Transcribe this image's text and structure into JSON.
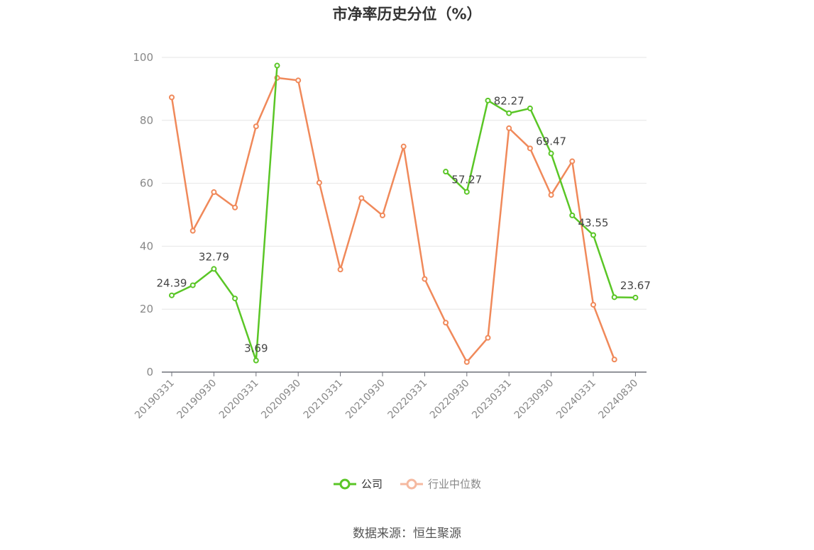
{
  "chart_data": {
    "type": "line",
    "title": "市净率历史分位（%）",
    "source": "数据来源：恒生聚源",
    "xlabel": "",
    "ylabel": "",
    "ylim": [
      0,
      100
    ],
    "yticks": [
      0,
      20,
      40,
      60,
      80,
      100
    ],
    "x_tick_labels": [
      "20190331",
      "20190930",
      "20200331",
      "20200930",
      "20210331",
      "20210930",
      "20220331",
      "20220930",
      "20230331",
      "20230930",
      "20240331",
      "20240830"
    ],
    "categories": [
      "20190331",
      "20190630",
      "20190930",
      "20191231",
      "20200331",
      "20200630",
      "20200930",
      "20201231",
      "20210331",
      "20210630",
      "20210930",
      "20211231",
      "20220331",
      "20220630",
      "20220930",
      "20221231",
      "20230331",
      "20230630",
      "20230930",
      "20231231",
      "20240331",
      "20240630",
      "20240830"
    ],
    "series": [
      {
        "name": "公司",
        "color": "#5ac626",
        "values": [
          24.39,
          27.6,
          32.79,
          23.4,
          3.69,
          97.4,
          null,
          null,
          null,
          null,
          null,
          null,
          null,
          63.7,
          57.27,
          86.3,
          82.27,
          83.8,
          69.47,
          49.8,
          43.55,
          23.8,
          23.67
        ],
        "labels": {
          "0": "24.39",
          "2": "32.79",
          "4": "3.69",
          "14": "57.27",
          "16": "82.27",
          "18": "69.47",
          "20": "43.55",
          "22": "23.67"
        }
      },
      {
        "name": "行业中位数",
        "color": "#f0895a",
        "values": [
          87.3,
          44.9,
          57.2,
          52.3,
          78.1,
          93.5,
          92.7,
          60.2,
          32.6,
          55.3,
          49.8,
          71.7,
          29.6,
          15.7,
          3.2,
          10.9,
          77.5,
          71.1,
          56.3,
          67.0,
          21.4,
          4.0,
          null
        ]
      }
    ],
    "legend_position": "bottom",
    "grid": true
  }
}
